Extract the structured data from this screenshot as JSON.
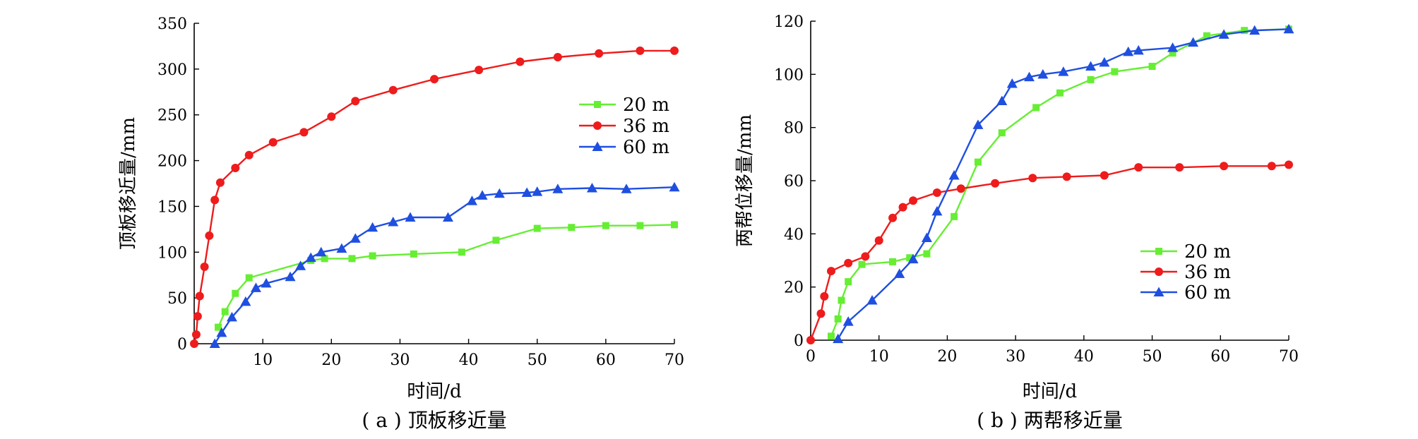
{
  "colors": {
    "20 m": "#66ee33",
    "36 m": "#ee1c1c",
    "60 m": "#1f4fe0"
  },
  "chart_data": [
    {
      "type": "line",
      "caption": "( a ) 顶板移近量",
      "xlabel": "时间/d",
      "ylabel": "顶板移近量/mm",
      "xlim": [
        0,
        70
      ],
      "ylim": [
        0,
        350
      ],
      "xticks": [
        10,
        20,
        30,
        40,
        50,
        60,
        70
      ],
      "yticks": [
        0,
        50,
        100,
        150,
        200,
        250,
        300,
        350
      ],
      "grid": false,
      "legend_position": "right",
      "series": [
        {
          "name": "20 m",
          "marker": "square",
          "points": [
            [
              3.5,
              18
            ],
            [
              4.5,
              35
            ],
            [
              6,
              55
            ],
            [
              8,
              72
            ],
            [
              17,
              91
            ],
            [
              19,
              93
            ],
            [
              23,
              93
            ],
            [
              26,
              96
            ],
            [
              32,
              98
            ],
            [
              39,
              100
            ],
            [
              44,
              113
            ],
            [
              50,
              126
            ],
            [
              55,
              127
            ],
            [
              60,
              129
            ],
            [
              65,
              129
            ],
            [
              70,
              130
            ]
          ]
        },
        {
          "name": "36 m",
          "marker": "circle",
          "points": [
            [
              0,
              0
            ],
            [
              0.3,
              10
            ],
            [
              0.5,
              30
            ],
            [
              0.8,
              52
            ],
            [
              1.5,
              84
            ],
            [
              2.2,
              118
            ],
            [
              3,
              157
            ],
            [
              3.8,
              176
            ],
            [
              6,
              192
            ],
            [
              8,
              206
            ],
            [
              11.5,
              220
            ],
            [
              16,
              231
            ],
            [
              20,
              248
            ],
            [
              23.5,
              265
            ],
            [
              29,
              277
            ],
            [
              35,
              289
            ],
            [
              41.5,
              299
            ],
            [
              47.5,
              308
            ],
            [
              53,
              313
            ],
            [
              59,
              317
            ],
            [
              65,
              320
            ],
            [
              70,
              320
            ]
          ]
        },
        {
          "name": "60 m",
          "marker": "triangle",
          "points": [
            [
              3,
              0
            ],
            [
              4,
              12
            ],
            [
              5.5,
              29
            ],
            [
              7.5,
              46
            ],
            [
              9,
              61
            ],
            [
              10.5,
              66
            ],
            [
              14,
              73
            ],
            [
              15.5,
              85
            ],
            [
              17,
              94
            ],
            [
              18.5,
              100
            ],
            [
              21.5,
              104
            ],
            [
              23.5,
              115
            ],
            [
              26,
              127
            ],
            [
              29,
              133
            ],
            [
              31.5,
              138
            ],
            [
              37,
              138
            ],
            [
              40.5,
              156
            ],
            [
              42,
              162
            ],
            [
              44.5,
              164
            ],
            [
              48.5,
              165
            ],
            [
              50,
              166
            ],
            [
              53,
              169
            ],
            [
              58,
              170
            ],
            [
              63,
              169
            ],
            [
              70,
              171
            ]
          ]
        }
      ]
    },
    {
      "type": "line",
      "caption": "( b ) 两帮移近量",
      "xlabel": "时间/d",
      "ylabel": "两帮位移量/mm",
      "xlim": [
        0,
        70
      ],
      "ylim": [
        0,
        120
      ],
      "xticks": [
        0,
        10,
        20,
        30,
        40,
        50,
        60,
        70
      ],
      "yticks": [
        0,
        20,
        40,
        60,
        80,
        100,
        120
      ],
      "grid": false,
      "legend_position": "bottom-right",
      "series": [
        {
          "name": "20 m",
          "marker": "square",
          "points": [
            [
              3,
              1.5
            ],
            [
              4,
              8
            ],
            [
              4.5,
              15
            ],
            [
              5.5,
              22
            ],
            [
              7.5,
              28.5
            ],
            [
              12,
              29.5
            ],
            [
              14.5,
              31
            ],
            [
              17,
              32.5
            ],
            [
              21,
              46.5
            ],
            [
              24.5,
              67
            ],
            [
              28,
              78
            ],
            [
              33,
              87.5
            ],
            [
              36.5,
              93
            ],
            [
              41,
              98
            ],
            [
              44.5,
              101
            ],
            [
              50,
              103
            ],
            [
              53,
              108
            ],
            [
              58,
              114.5
            ],
            [
              63.5,
              116.5
            ],
            [
              70,
              117
            ]
          ]
        },
        {
          "name": "36 m",
          "marker": "circle",
          "points": [
            [
              0,
              0
            ],
            [
              1.5,
              10
            ],
            [
              2,
              16.5
            ],
            [
              3,
              26
            ],
            [
              5.5,
              29
            ],
            [
              8,
              31.5
            ],
            [
              10,
              37.5
            ],
            [
              12,
              46
            ],
            [
              13.5,
              50
            ],
            [
              15,
              52.5
            ],
            [
              18.5,
              55.5
            ],
            [
              22,
              57
            ],
            [
              27,
              59
            ],
            [
              32.5,
              61
            ],
            [
              37.5,
              61.5
            ],
            [
              43,
              62
            ],
            [
              48,
              65
            ],
            [
              54,
              65
            ],
            [
              60.5,
              65.5
            ],
            [
              67.5,
              65.5
            ],
            [
              70,
              66
            ]
          ]
        },
        {
          "name": "60 m",
          "marker": "triangle",
          "points": [
            [
              4,
              0.5
            ],
            [
              5.5,
              7
            ],
            [
              9,
              15
            ],
            [
              13,
              25
            ],
            [
              15,
              30.5
            ],
            [
              17,
              38.5
            ],
            [
              18.5,
              48.5
            ],
            [
              21,
              62
            ],
            [
              24.5,
              81
            ],
            [
              28,
              90
            ],
            [
              29.5,
              96.5
            ],
            [
              32,
              99
            ],
            [
              34,
              100
            ],
            [
              37,
              101
            ],
            [
              41,
              103
            ],
            [
              43,
              104.5
            ],
            [
              46.5,
              108.5
            ],
            [
              48,
              109
            ],
            [
              53,
              110
            ],
            [
              56,
              112
            ],
            [
              60.5,
              115
            ],
            [
              65,
              116.5
            ],
            [
              70,
              117
            ]
          ]
        }
      ]
    }
  ]
}
